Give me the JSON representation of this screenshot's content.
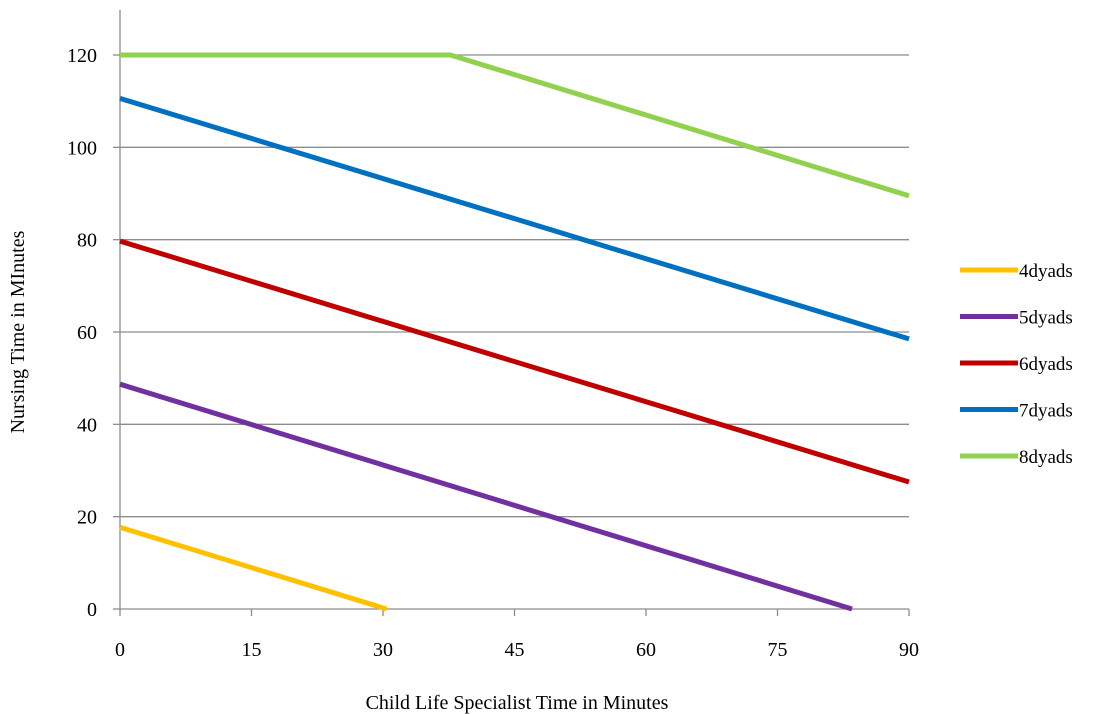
{
  "chart_data": {
    "type": "line",
    "title": "",
    "xlabel": "Child Life Specialist Time in Minutes",
    "ylabel": "Nursing Time in MInutes",
    "xlim": [
      0,
      90
    ],
    "ylim": [
      0,
      120
    ],
    "x_ticks": [
      0,
      15,
      30,
      45,
      60,
      75,
      90
    ],
    "y_ticks": [
      0,
      20,
      40,
      60,
      80,
      100,
      120
    ],
    "x_tick_labels": [
      "0",
      "15",
      "30",
      "45",
      "60",
      "75",
      "90"
    ],
    "y_tick_labels": [
      "0",
      "20",
      "40",
      "60",
      "80",
      "100",
      "120"
    ],
    "grid": "horizontal",
    "legend_position": "right",
    "series": [
      {
        "name": "4dyads",
        "color": "#FFC000",
        "points": [
          [
            0,
            17.7
          ],
          [
            30.4,
            0
          ]
        ]
      },
      {
        "name": "5dyads",
        "color": "#7030A0",
        "points": [
          [
            0,
            48.7
          ],
          [
            83.5,
            0
          ]
        ]
      },
      {
        "name": "6dyads",
        "color": "#C00000",
        "points": [
          [
            0,
            79.7
          ],
          [
            90,
            27.5
          ]
        ]
      },
      {
        "name": "7dyads",
        "color": "#0070C0",
        "points": [
          [
            0,
            110.6
          ],
          [
            90,
            58.5
          ]
        ]
      },
      {
        "name": "8dyads",
        "color": "#92D050",
        "points": [
          [
            0,
            120
          ],
          [
            37.7,
            120
          ],
          [
            90,
            89.5
          ]
        ]
      }
    ]
  }
}
